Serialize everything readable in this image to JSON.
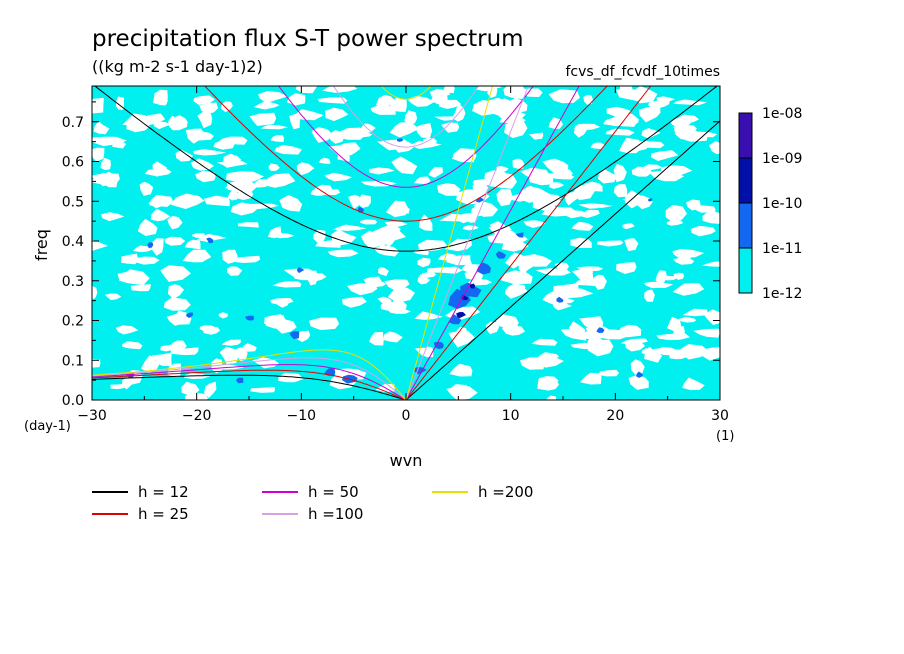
{
  "chart_data": {
    "type": "heatmap",
    "title": "precipitation flux S-T power spectrum",
    "units": "((kg m-2 s-1 day-1)2)",
    "run_name": "fcvs_df_fcvdf_10times",
    "xlabel": "wvn",
    "ylabel": "freq",
    "x_unit": "(1)",
    "y_unit": "(day-1)",
    "xlim": [
      -30,
      30
    ],
    "ylim": [
      0,
      0.79
    ],
    "xticks": [
      -30,
      -20,
      -10,
      0,
      10,
      20,
      30
    ],
    "yticks": [
      0.0,
      0.1,
      0.2,
      0.3,
      0.4,
      0.5,
      0.6,
      0.7
    ],
    "xtick_labels": [
      "−30",
      "−20",
      "−10",
      "0",
      "10",
      "20",
      "30"
    ],
    "ytick_labels": [
      "0.0",
      "0.1",
      "0.2",
      "0.3",
      "0.4",
      "0.5",
      "0.6",
      "0.7"
    ],
    "colorbar": {
      "levels": [
        "1e-08",
        "1e-09",
        "1e-10",
        "1e-11",
        "1e-12"
      ],
      "colors": [
        "#3a0fb0",
        "#0010a8",
        "#1468f0",
        "#00f0f0"
      ]
    },
    "dispersion_curves": [
      {
        "label": "h = 12",
        "color": "#000000"
      },
      {
        "label": "h = 25",
        "color": "#e00000"
      },
      {
        "label": "h = 50",
        "color": "#d000d0"
      },
      {
        "label": "h =100",
        "color": "#d8a0e8"
      },
      {
        "label": "h =200",
        "color": "#e8e000"
      }
    ]
  }
}
